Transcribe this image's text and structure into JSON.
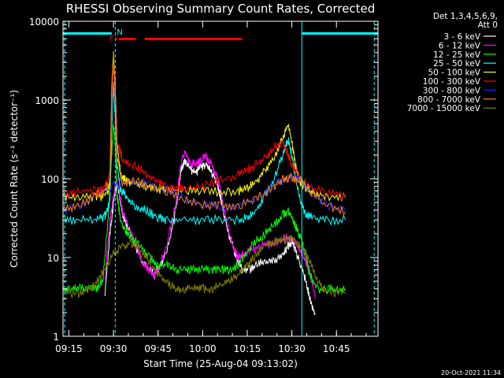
{
  "chart_data": {
    "type": "line",
    "title": "RHESSI Observing Summary Count Rates, Corrected",
    "xlabel": "Start Time (25-Aug-04 09:13:02)",
    "ylabel": "Corrected Count Rate (s⁻¹ detector⁻¹)",
    "yscale": "log",
    "xlim": [
      9.217,
      10.983
    ],
    "ylim": [
      1,
      10000
    ],
    "grid": false,
    "legend_position": "top-right",
    "x_ticks": [
      {
        "v": 9.25,
        "label": "09:15"
      },
      {
        "v": 9.5,
        "label": "09:30"
      },
      {
        "v": 9.75,
        "label": "09:45"
      },
      {
        "v": 10.0,
        "label": "10:00"
      },
      {
        "v": 10.25,
        "label": "10:15"
      },
      {
        "v": 10.5,
        "label": "10:30"
      },
      {
        "v": 10.75,
        "label": "10:45"
      }
    ],
    "y_ticks": [
      {
        "v": 1,
        "label": "1"
      },
      {
        "v": 10,
        "label": "10"
      },
      {
        "v": 100,
        "label": "100"
      },
      {
        "v": 1000,
        "label": "1000"
      },
      {
        "v": 10000,
        "label": "10000"
      }
    ],
    "legend_header": [
      "Det 1,3,4,5,6,9,",
      "Att 0"
    ],
    "series": [
      {
        "name": "3 - 6 keV",
        "color": "#ffffff",
        "x": [
          9.217,
          9.33,
          9.4,
          9.45,
          9.48,
          9.5,
          9.52,
          9.55,
          9.58,
          9.62,
          9.66,
          9.7,
          9.73,
          9.76,
          9.8,
          9.85,
          9.88,
          9.9,
          9.93,
          9.96,
          9.99,
          10.02,
          10.05,
          10.08,
          10.1,
          10.12,
          10.15,
          10.18,
          10.2,
          10.22,
          10.26,
          10.3,
          10.35,
          10.4,
          10.45,
          10.48,
          10.5,
          10.52,
          10.55,
          10.58,
          10.6,
          10.63
        ],
        "y": [
          null,
          null,
          null,
          3,
          20,
          50,
          90,
          35,
          25,
          15,
          9,
          7,
          6,
          8,
          12,
          40,
          130,
          170,
          130,
          120,
          140,
          150,
          120,
          90,
          60,
          35,
          18,
          12,
          9,
          7,
          7,
          8,
          9,
          9,
          11,
          14,
          16,
          12,
          8,
          5,
          3,
          2
        ]
      },
      {
        "name": "6 - 12 keV",
        "color": "#ff00ff",
        "x": [
          9.217,
          9.45,
          9.48,
          9.5,
          9.52,
          9.55,
          9.58,
          9.62,
          9.66,
          9.7,
          9.73,
          9.76,
          9.8,
          9.85,
          9.88,
          9.9,
          9.93,
          9.96,
          9.99,
          10.02,
          10.05,
          10.08,
          10.1,
          10.12,
          10.15,
          10.18,
          10.2,
          10.23,
          10.28,
          10.33,
          10.38,
          10.43,
          10.47,
          10.5,
          10.53,
          10.56,
          10.6,
          10.63
        ],
        "y": [
          null,
          5,
          30,
          60,
          100,
          40,
          25,
          15,
          9,
          7,
          6,
          8,
          15,
          50,
          170,
          210,
          160,
          150,
          170,
          190,
          150,
          110,
          70,
          40,
          20,
          12,
          10,
          11,
          13,
          14,
          15,
          16,
          18,
          17,
          14,
          11,
          7,
          3
        ]
      },
      {
        "name": "12 - 25 keV",
        "color": "#00ff00",
        "x": [
          9.217,
          9.25,
          9.3,
          9.35,
          9.4,
          9.44,
          9.47,
          9.49,
          9.5,
          9.51,
          9.52,
          9.54,
          9.57,
          9.6,
          9.65,
          9.7,
          9.75,
          9.8,
          9.85,
          9.9,
          9.95,
          10.0,
          10.05,
          10.1,
          10.15,
          10.2,
          10.25,
          10.3,
          10.35,
          10.4,
          10.45,
          10.48,
          10.5,
          10.52,
          10.55,
          10.58,
          10.6,
          10.65,
          10.7,
          10.75,
          10.8
        ],
        "y": [
          4,
          4,
          4,
          4,
          4,
          5,
          30,
          200,
          500,
          280,
          60,
          30,
          22,
          18,
          14,
          10,
          8,
          8,
          7,
          7,
          7,
          7,
          7,
          7,
          7,
          8,
          12,
          16,
          20,
          26,
          35,
          40,
          32,
          25,
          18,
          10,
          6,
          4,
          4,
          4,
          4
        ]
      },
      {
        "name": "25 - 50 keV",
        "color": "#00ffff",
        "x": [
          9.217,
          9.3,
          9.4,
          9.45,
          9.48,
          9.49,
          9.5,
          9.51,
          9.52,
          9.54,
          9.57,
          9.6,
          9.65,
          9.7,
          9.75,
          9.8,
          9.9,
          10.0,
          10.1,
          10.2,
          10.25,
          10.3,
          10.35,
          10.4,
          10.45,
          10.48,
          10.5,
          10.52,
          10.55,
          10.58,
          10.62,
          10.7,
          10.8
        ],
        "y": [
          30,
          30,
          30,
          33,
          50,
          400,
          1600,
          600,
          150,
          75,
          60,
          50,
          42,
          38,
          32,
          30,
          30,
          30,
          30,
          30,
          32,
          40,
          60,
          100,
          200,
          320,
          200,
          100,
          50,
          35,
          32,
          30,
          30
        ]
      },
      {
        "name": "50 - 100 keV",
        "color": "#ffff00",
        "x": [
          9.217,
          9.3,
          9.4,
          9.45,
          9.48,
          9.49,
          9.5,
          9.51,
          9.52,
          9.54,
          9.57,
          9.6,
          9.65,
          9.7,
          9.75,
          9.8,
          9.9,
          10.0,
          10.1,
          10.2,
          10.25,
          10.3,
          10.35,
          10.4,
          10.45,
          10.48,
          10.5,
          10.52,
          10.55,
          10.58,
          10.62,
          10.7,
          10.8
        ],
        "y": [
          58,
          58,
          58,
          60,
          80,
          1200,
          4000,
          1500,
          300,
          110,
          95,
          90,
          85,
          80,
          75,
          72,
          70,
          68,
          68,
          70,
          75,
          90,
          130,
          180,
          350,
          500,
          300,
          150,
          90,
          75,
          65,
          60,
          58
        ]
      },
      {
        "name": "100 - 300 keV",
        "color": "#ff0000",
        "x": [
          9.217,
          9.3,
          9.4,
          9.45,
          9.48,
          9.49,
          9.5,
          9.51,
          9.52,
          9.55,
          9.6,
          9.65,
          9.7,
          9.75,
          9.8,
          9.85,
          9.9,
          10.0,
          10.1,
          10.2,
          10.25,
          10.3,
          10.35,
          10.4,
          10.45,
          10.48,
          10.5,
          10.55,
          10.6,
          10.7,
          10.8
        ],
        "y": [
          65,
          67,
          72,
          75,
          120,
          800,
          3000,
          900,
          300,
          180,
          150,
          130,
          110,
          95,
          80,
          75,
          75,
          80,
          95,
          110,
          130,
          150,
          180,
          250,
          300,
          200,
          150,
          100,
          80,
          65,
          60
        ]
      },
      {
        "name": "300 - 800 keV",
        "color": "#2020ff",
        "x": [
          9.217,
          9.3,
          9.4,
          9.5,
          9.6,
          9.7,
          9.8,
          9.9,
          10.0,
          10.1,
          10.2,
          10.3,
          10.4,
          10.45,
          10.5,
          10.55,
          10.6,
          10.7,
          10.8
        ],
        "y": [
          40,
          45,
          60,
          80,
          95,
          85,
          70,
          55,
          47,
          45,
          46,
          55,
          80,
          100,
          105,
          95,
          70,
          45,
          38
        ]
      },
      {
        "name": "800 - 7000 keV",
        "color": "#ff8000",
        "x": [
          9.217,
          9.3,
          9.4,
          9.45,
          9.48,
          9.49,
          9.5,
          9.51,
          9.52,
          9.55,
          9.6,
          9.7,
          9.8,
          9.9,
          10.0,
          10.1,
          10.2,
          10.3,
          10.4,
          10.45,
          10.5,
          10.55,
          10.6,
          10.7,
          10.8
        ],
        "y": [
          40,
          45,
          60,
          70,
          90,
          1500,
          3500,
          1200,
          200,
          85,
          95,
          85,
          70,
          55,
          47,
          45,
          46,
          55,
          80,
          100,
          105,
          95,
          70,
          45,
          38
        ]
      },
      {
        "name": "7000 - 15000 keV",
        "color": "#808000",
        "x": [
          9.217,
          9.3,
          9.35,
          9.4,
          9.45,
          9.5,
          9.55,
          9.6,
          9.65,
          9.7,
          9.75,
          9.8,
          9.85,
          9.9,
          9.95,
          10.0,
          10.05,
          10.1,
          10.15,
          10.2,
          10.25,
          10.3,
          10.35,
          10.4,
          10.45,
          10.5,
          10.55,
          10.6,
          10.65,
          10.7,
          10.8
        ],
        "y": [
          3.5,
          3.5,
          3.8,
          4.5,
          7,
          11,
          14,
          15,
          13,
          9,
          6,
          5,
          4,
          4,
          4,
          4,
          4,
          4.5,
          5,
          6,
          8,
          11,
          14,
          16,
          17,
          17,
          14,
          9,
          5,
          3.5,
          3.5
        ]
      }
    ],
    "annotations": [
      {
        "text": "N",
        "x": 9.5,
        "color": "#00ffff"
      },
      {
        "text": "F",
        "x": 9.505,
        "color": "#ff0000"
      }
    ],
    "night_bars": [
      {
        "x0": 9.217,
        "x1": 9.49,
        "label": "N"
      },
      {
        "x0": 10.556,
        "x1": 10.983,
        "label": ""
      }
    ],
    "flare_bars": [
      {
        "x0": 9.51,
        "x1": 9.52
      },
      {
        "x0": 9.53,
        "x1": 9.625
      },
      {
        "x0": 9.675,
        "x1": 10.22
      }
    ],
    "night_lines": [
      {
        "x": 9.226,
        "style": "dashed"
      },
      {
        "x": 9.51,
        "style": "dashed"
      },
      {
        "x": 10.556,
        "style": "solid"
      },
      {
        "x": 10.962,
        "style": "dashed"
      }
    ],
    "footer_timestamp": "20-Oct-2021 11:34"
  }
}
